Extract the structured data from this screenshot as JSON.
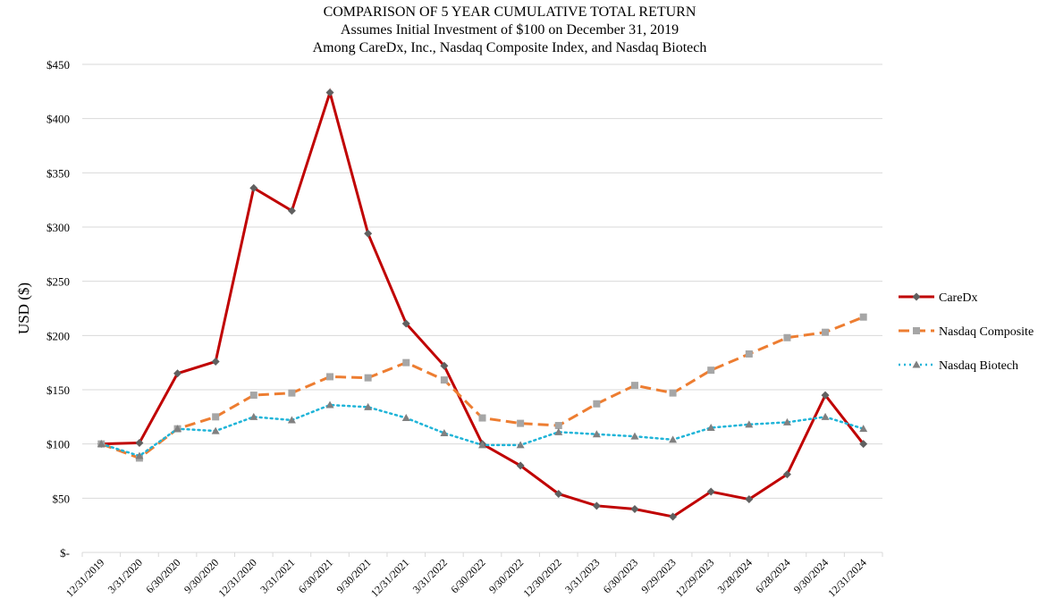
{
  "chart_data": {
    "type": "line",
    "title": [
      "COMPARISON OF 5 YEAR CUMULATIVE TOTAL RETURN",
      "Assumes Initial Investment of $100 on December 31, 2019",
      "Among CareDx, Inc., Nasdaq Composite Index, and Nasdaq Biotech"
    ],
    "xlabel": "",
    "ylabel": "USD ($)",
    "ylim": [
      0,
      450
    ],
    "yticks": [
      0,
      50,
      100,
      150,
      200,
      250,
      300,
      350,
      400,
      450
    ],
    "ytick_labels": [
      "$-",
      "$50",
      "$100",
      "$150",
      "$200",
      "$250",
      "$300",
      "$350",
      "$400",
      "$450"
    ],
    "grid": "horizontal",
    "legend": "right",
    "categories": [
      "12/31/2019",
      "3/31/2020",
      "6/30/2020",
      "9/30/2020",
      "12/31/2020",
      "3/31/2021",
      "6/30/2021",
      "9/30/2021",
      "12/31/2021",
      "3/31/2022",
      "6/30/2022",
      "9/30/2022",
      "12/30/2022",
      "3/31/2023",
      "6/30/2023",
      "9/29/2023",
      "12/29/2023",
      "3/28/2024",
      "6/28/2024",
      "9/30/2024",
      "12/31/2024"
    ],
    "series": [
      {
        "name": "CareDx",
        "color": "#c00000",
        "marker": "diamond",
        "style": "solid",
        "values": [
          100,
          101,
          165,
          176,
          336,
          315,
          424,
          294,
          211,
          172,
          100,
          80,
          54,
          43,
          40,
          33,
          56,
          49,
          72,
          145,
          100
        ]
      },
      {
        "name": "Nasdaq Composite",
        "color": "#ed7d31",
        "marker": "square",
        "style": "dashed",
        "values": [
          100,
          87,
          114,
          125,
          145,
          147,
          162,
          161,
          175,
          159,
          124,
          119,
          117,
          137,
          154,
          147,
          168,
          183,
          198,
          203,
          217
        ]
      },
      {
        "name": "Nasdaq Biotech",
        "color": "#1fb4d8",
        "marker": "triangle",
        "style": "dotted",
        "values": [
          100,
          89,
          114,
          112,
          125,
          122,
          136,
          134,
          124,
          110,
          99,
          99,
          111,
          109,
          107,
          104,
          115,
          118,
          120,
          125,
          114
        ]
      }
    ]
  }
}
